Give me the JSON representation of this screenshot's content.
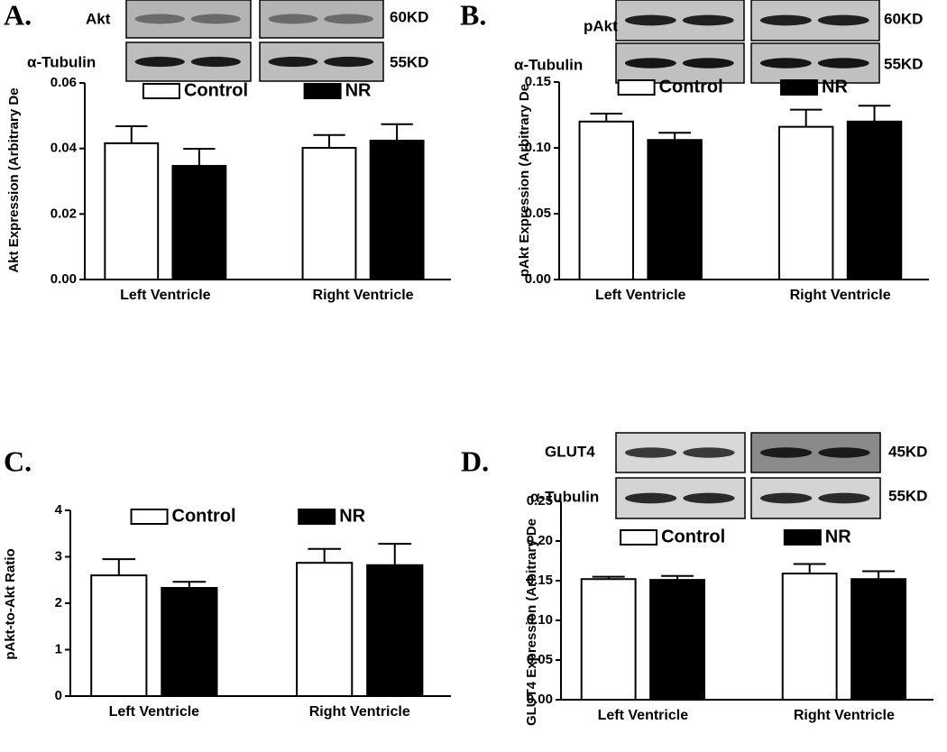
{
  "chart_data": [
    {
      "type": "bar",
      "panel_label": "A.",
      "blots": [
        {
          "protein": "Akt",
          "size": "60KD"
        },
        {
          "protein": "α-Tubulin",
          "size": "55KD"
        }
      ],
      "y_label": "Akt Expression (Arbitrary De",
      "categories": [
        "Left Ventricle",
        "Right Ventricle"
      ],
      "series": [
        {
          "name": "Control",
          "color": "#ffffff",
          "values": [
            0.0416,
            0.0402
          ],
          "errors": [
            0.0052,
            0.0039
          ]
        },
        {
          "name": "NR",
          "color": "#000000",
          "values": [
            0.0347,
            0.0424
          ],
          "errors": [
            0.0052,
            0.005
          ]
        }
      ],
      "ylim": [
        0,
        0.06
      ],
      "yticks": [
        {
          "value": 0,
          "label": "0.00"
        },
        {
          "value": 0.02,
          "label": "0.02"
        },
        {
          "value": 0.04,
          "label": "0.04"
        },
        {
          "value": 0.06,
          "label": "0.06"
        }
      ]
    },
    {
      "type": "bar",
      "panel_label": "B.",
      "blots": [
        {
          "protein": "pAkt",
          "size": "60KD"
        },
        {
          "protein": "α-Tubulin",
          "size": "55KD"
        }
      ],
      "y_label": "pAkt Expression (Arbitrary De",
      "categories": [
        "Left Ventricle",
        "Right Ventricle"
      ],
      "series": [
        {
          "name": "Control",
          "color": "#ffffff",
          "values": [
            0.12,
            0.116
          ],
          "errors": [
            0.006,
            0.013
          ]
        },
        {
          "name": "NR",
          "color": "#000000",
          "values": [
            0.106,
            0.12
          ],
          "errors": [
            0.0055,
            0.012
          ]
        }
      ],
      "ylim": [
        0,
        0.15
      ],
      "yticks": [
        {
          "value": 0,
          "label": "0.00"
        },
        {
          "value": 0.05,
          "label": "0.05"
        },
        {
          "value": 0.1,
          "label": "0.10"
        },
        {
          "value": 0.15,
          "label": "0.15"
        }
      ]
    },
    {
      "type": "bar",
      "panel_label": "C.",
      "y_label": "pAkt-to-Akt Ratio",
      "categories": [
        "Left Ventricle",
        "Right Ventricle"
      ],
      "series": [
        {
          "name": "Control",
          "color": "#ffffff",
          "values": [
            2.6,
            2.87
          ],
          "errors": [
            0.35,
            0.3
          ]
        },
        {
          "name": "NR",
          "color": "#000000",
          "values": [
            2.33,
            2.82
          ],
          "errors": [
            0.13,
            0.46
          ]
        }
      ],
      "ylim": [
        0,
        4
      ],
      "yticks": [
        0,
        1,
        2,
        3,
        4
      ]
    },
    {
      "type": "bar",
      "panel_label": "D.",
      "blots": [
        {
          "protein": "GLUT4",
          "size": "45KD"
        },
        {
          "protein": "α-Tubulin",
          "size": "55KD"
        }
      ],
      "y_label": "GLUT4 Expression (Arbitrary De",
      "categories": [
        "Left Ventricle",
        "Right Ventricle"
      ],
      "series": [
        {
          "name": "Control",
          "color": "#ffffff",
          "values": [
            0.152,
            0.159
          ],
          "errors": [
            0.003,
            0.012
          ]
        },
        {
          "name": "NR",
          "color": "#000000",
          "values": [
            0.151,
            0.152
          ],
          "errors": [
            0.005,
            0.01
          ]
        }
      ],
      "ylim": [
        0,
        0.25
      ],
      "yticks": [
        {
          "value": 0,
          "label": "0.00"
        },
        {
          "value": 0.05,
          "label": "0.05"
        },
        {
          "value": 0.1,
          "label": "0.10"
        },
        {
          "value": 0.15,
          "label": "0.15"
        },
        {
          "value": 0.2,
          "label": "0.20"
        },
        {
          "value": 0.25,
          "label": "0.25"
        }
      ]
    }
  ]
}
